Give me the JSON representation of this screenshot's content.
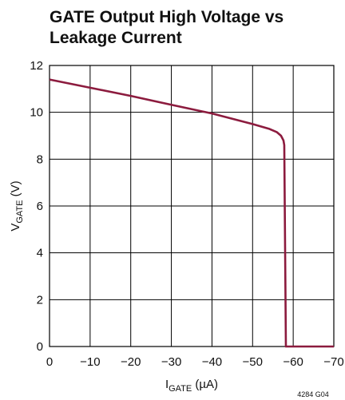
{
  "chart_data": {
    "type": "line",
    "title": [
      "GATE Output High Voltage vs",
      "Leakage Current"
    ],
    "y_label": [
      "V",
      "GATE",
      " (V)"
    ],
    "x_label": [
      "I",
      "GATE",
      " (µA)"
    ],
    "annotation": "4284 G04",
    "x": [
      0,
      -10,
      -20,
      -30,
      -40,
      -50,
      -54,
      -56,
      -57,
      -57.6,
      -57.8,
      -58.2,
      -60,
      -70
    ],
    "series": [
      {
        "color": "#8c1b3e",
        "values": [
          11.4,
          11.05,
          10.7,
          10.32,
          9.95,
          9.5,
          9.3,
          9.15,
          9.0,
          8.8,
          8.6,
          0,
          0,
          0
        ]
      }
    ],
    "xlim": [
      0,
      -70
    ],
    "xticks": [
      0,
      {
        "value": -10,
        "label": "−10"
      },
      {
        "value": -20,
        "label": "−20"
      },
      {
        "value": -30,
        "label": "−30"
      },
      {
        "value": -40,
        "label": "−40"
      },
      {
        "value": -50,
        "label": "−50"
      },
      {
        "value": -60,
        "label": "−60"
      },
      {
        "value": -70,
        "label": "−70"
      }
    ],
    "ylim": [
      0,
      12
    ],
    "yticks": [
      0,
      2,
      4,
      6,
      8,
      10,
      12
    ],
    "grid": true
  }
}
